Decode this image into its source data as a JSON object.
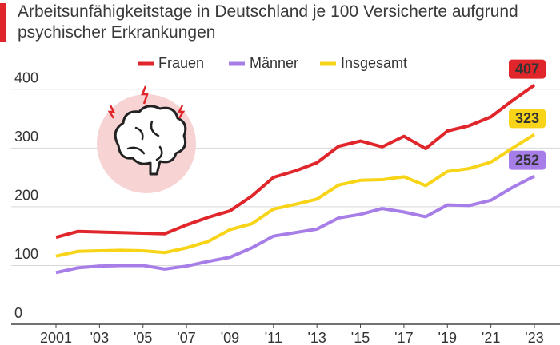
{
  "chart_data": {
    "type": "line",
    "title": "Arbeitsunfähigkeitstage in Deutschland je 100 Versicherte aufgrund psychischer Erkrankungen",
    "x": [
      2001,
      2002,
      2003,
      2004,
      2005,
      2006,
      2007,
      2008,
      2009,
      2010,
      2011,
      2012,
      2013,
      2014,
      2015,
      2016,
      2017,
      2018,
      2019,
      2020,
      2021,
      2022,
      2023
    ],
    "series": [
      {
        "name": "Frauen",
        "color": "#e0262b",
        "values": [
          148,
          158,
          157,
          156,
          155,
          154,
          169,
          182,
          193,
          218,
          250,
          261,
          275,
          303,
          312,
          302,
          320,
          299,
          329,
          338,
          353,
          381,
          407
        ]
      },
      {
        "name": "Männer",
        "color": "#a77de8",
        "values": [
          88,
          96,
          99,
          100,
          100,
          94,
          99,
          107,
          114,
          130,
          150,
          156,
          162,
          181,
          187,
          197,
          191,
          183,
          203,
          202,
          211,
          233,
          252
        ]
      },
      {
        "name": "Insgesamt",
        "color": "#f7d417",
        "values": [
          116,
          124,
          125,
          126,
          125,
          122,
          130,
          141,
          161,
          171,
          196,
          204,
          213,
          237,
          245,
          246,
          251,
          236,
          260,
          265,
          276,
          300,
          323
        ]
      }
    ],
    "xlim": [
      2001,
      2023
    ],
    "xticks": [
      2001,
      {
        "value": 2003,
        "label": "'03"
      },
      {
        "value": 2005,
        "label": "'05"
      },
      {
        "value": 2007,
        "label": "'07"
      },
      {
        "value": 2009,
        "label": "'09"
      },
      {
        "value": 2011,
        "label": "'11"
      },
      {
        "value": 2013,
        "label": "'13"
      },
      {
        "value": 2015,
        "label": "'15"
      },
      {
        "value": 2017,
        "label": "'17"
      },
      {
        "value": 2019,
        "label": "'19"
      },
      {
        "value": 2021,
        "label": "'21"
      },
      {
        "value": 2023,
        "label": "'23"
      }
    ],
    "ylim": [
      0,
      450
    ],
    "yticks": [
      0,
      100,
      200,
      300,
      400
    ],
    "grid": true
  }
}
